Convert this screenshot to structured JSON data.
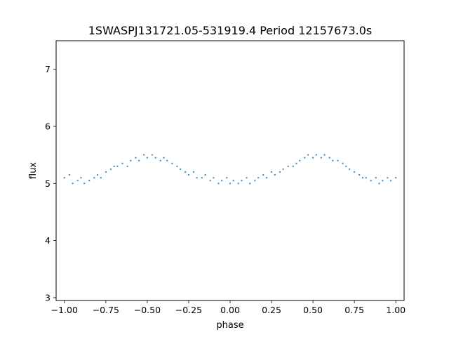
{
  "chart_data": {
    "type": "scatter",
    "title": "1SWASPJ131721.05-531919.4 Period 12157673.0s",
    "xlabel": "phase",
    "ylabel": "flux",
    "xlim": [
      -1.05,
      1.05
    ],
    "ylim": [
      2.95,
      7.5
    ],
    "xticks": [
      -1.0,
      -0.75,
      -0.5,
      -0.25,
      0.0,
      0.25,
      0.5,
      0.75,
      1.0
    ],
    "xtick_labels": [
      "−1.00",
      "−0.75",
      "−0.50",
      "−0.25",
      "0.00",
      "0.25",
      "0.50",
      "0.75",
      "1.00"
    ],
    "yticks": [
      3,
      4,
      5,
      6,
      7
    ],
    "ytick_labels": [
      "3",
      "4",
      "5",
      "6",
      "7"
    ],
    "grid": false,
    "marker_color": "#1f77b4",
    "series": [
      {
        "x": [
          -1.0,
          -0.97,
          -0.95,
          -0.92,
          -0.9,
          -0.88,
          -0.85,
          -0.82,
          -0.8,
          -0.78,
          -0.75,
          -0.72,
          -0.7,
          -0.68,
          -0.65,
          -0.62,
          -0.6,
          -0.57,
          -0.55,
          -0.52,
          -0.5,
          -0.47,
          -0.45,
          -0.42,
          -0.4,
          -0.38,
          -0.35,
          -0.32,
          -0.3,
          -0.27,
          -0.25,
          -0.22,
          -0.2,
          -0.17,
          -0.15,
          -0.12,
          -0.1,
          -0.07,
          -0.05,
          -0.02,
          0.0,
          0.02,
          0.05,
          0.07,
          0.1,
          0.12,
          0.15,
          0.17,
          0.2,
          0.22,
          0.25,
          0.27,
          0.3,
          0.32,
          0.35,
          0.38,
          0.4,
          0.42,
          0.45,
          0.47,
          0.5,
          0.52,
          0.55,
          0.57,
          0.6,
          0.62,
          0.65,
          0.68,
          0.7,
          0.72,
          0.75,
          0.78,
          0.8,
          0.82,
          0.85,
          0.88,
          0.9,
          0.92,
          0.95,
          0.97,
          1.0
        ],
        "y": [
          5.1,
          5.15,
          5.0,
          5.05,
          5.1,
          5.0,
          5.05,
          5.1,
          5.15,
          5.1,
          5.2,
          5.25,
          5.3,
          5.3,
          5.35,
          5.3,
          5.4,
          5.45,
          5.4,
          5.5,
          5.45,
          5.5,
          5.45,
          5.4,
          5.45,
          5.4,
          5.35,
          5.3,
          5.25,
          5.2,
          5.15,
          5.2,
          5.1,
          5.1,
          5.15,
          5.05,
          5.1,
          5.0,
          5.05,
          5.1,
          5.0,
          5.05,
          5.0,
          5.05,
          5.1,
          5.0,
          5.05,
          5.1,
          5.15,
          5.1,
          5.2,
          5.15,
          5.2,
          5.25,
          5.3,
          5.3,
          5.35,
          5.4,
          5.45,
          5.5,
          5.45,
          5.5,
          5.45,
          5.5,
          5.45,
          5.4,
          5.4,
          5.35,
          5.3,
          5.25,
          5.2,
          5.15,
          5.1,
          5.1,
          5.05,
          5.1,
          5.0,
          5.05,
          5.1,
          5.05,
          5.1
        ]
      }
    ]
  }
}
